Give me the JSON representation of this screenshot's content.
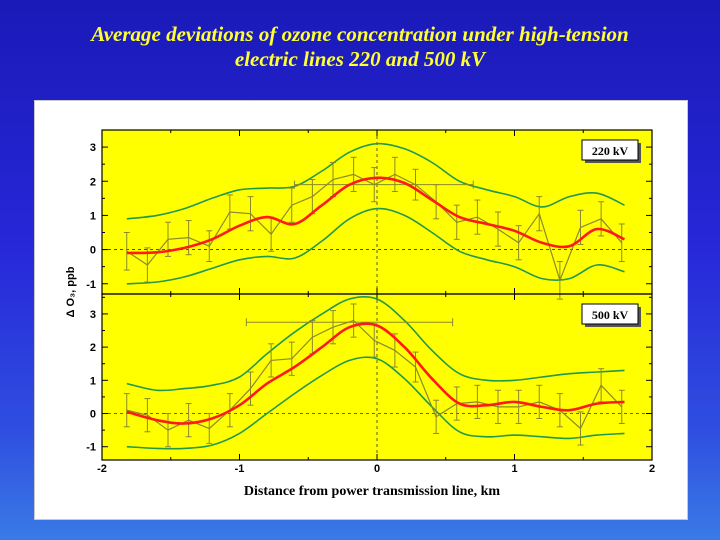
{
  "slide": {
    "title_line1": "Average deviations of ozone concentration under high-tension",
    "title_line2": "electric lines 220 and 500 kV"
  },
  "colors": {
    "background": "#2a2ad0",
    "title": "#ffff33",
    "plot_area": "#ffff00",
    "mean_line": "#ff1a1a",
    "data_line": "#8a8a2a",
    "band_line": "#1f9a4a"
  },
  "chart_data": [
    {
      "type": "line",
      "panel_label": "220 kV",
      "xlabel": "Distance from power transmission line, km",
      "ylabel": "Δ O₃, ppb",
      "xlim": [
        -2,
        2
      ],
      "ylim": [
        -1.3,
        3.5
      ],
      "xticks": [
        "-2",
        "-1",
        "0",
        "1",
        "2"
      ],
      "yticks": [
        "-1",
        "0",
        "1",
        "2",
        "3"
      ],
      "reference_lines": {
        "x": 0,
        "y": 0
      },
      "observed": {
        "x": [
          -1.82,
          -1.67,
          -1.52,
          -1.37,
          -1.22,
          -1.07,
          -0.92,
          -0.77,
          -0.62,
          -0.47,
          -0.32,
          -0.17,
          -0.02,
          0.13,
          0.28,
          0.43,
          0.58,
          0.73,
          0.88,
          1.03,
          1.18,
          1.33,
          1.48,
          1.63,
          1.78
        ],
        "y": [
          -0.05,
          -0.45,
          0.3,
          0.35,
          0.1,
          1.1,
          1.05,
          0.45,
          1.3,
          1.55,
          2.05,
          2.2,
          1.9,
          2.2,
          1.9,
          1.4,
          0.8,
          0.95,
          0.6,
          0.2,
          1.05,
          -0.9,
          0.65,
          0.9,
          0.2
        ],
        "error": [
          0.55,
          0.5,
          0.5,
          0.5,
          0.45,
          0.5,
          0.5,
          0.5,
          0.5,
          0.5,
          0.5,
          0.5,
          0.5,
          0.5,
          0.45,
          0.5,
          0.5,
          0.5,
          0.5,
          0.5,
          0.5,
          0.55,
          0.5,
          0.5,
          0.55
        ]
      },
      "horizontal_error_bar": {
        "center": 0.05,
        "half_width": 0.65,
        "y": 1.9
      },
      "smoothed": {
        "x": [
          -1.82,
          -1.6,
          -1.4,
          -1.2,
          -1.0,
          -0.8,
          -0.6,
          -0.4,
          -0.2,
          0.0,
          0.2,
          0.4,
          0.6,
          0.8,
          1.0,
          1.2,
          1.4,
          1.6,
          1.8
        ],
        "y": [
          -0.1,
          -0.08,
          0.05,
          0.3,
          0.7,
          0.95,
          0.75,
          1.3,
          1.9,
          2.1,
          1.95,
          1.45,
          0.95,
          0.75,
          0.55,
          0.2,
          0.1,
          0.6,
          0.3
        ]
      },
      "upper_band": {
        "x": [
          -1.82,
          -1.6,
          -1.4,
          -1.2,
          -1.0,
          -0.8,
          -0.6,
          -0.4,
          -0.2,
          0.0,
          0.2,
          0.4,
          0.6,
          0.8,
          1.0,
          1.2,
          1.4,
          1.6,
          1.8
        ],
        "y": [
          0.9,
          1.0,
          1.2,
          1.5,
          1.75,
          1.8,
          1.85,
          2.3,
          2.85,
          3.1,
          2.95,
          2.55,
          2.0,
          1.75,
          1.55,
          1.25,
          1.55,
          1.65,
          1.3
        ]
      },
      "lower_band": {
        "x": [
          -1.82,
          -1.6,
          -1.4,
          -1.2,
          -1.0,
          -0.8,
          -0.6,
          -0.4,
          -0.2,
          0.0,
          0.2,
          0.4,
          0.6,
          0.8,
          1.0,
          1.2,
          1.4,
          1.6,
          1.8
        ],
        "y": [
          -1.0,
          -0.95,
          -0.8,
          -0.55,
          -0.3,
          -0.2,
          -0.25,
          0.25,
          0.9,
          1.2,
          1.0,
          0.5,
          -0.05,
          -0.3,
          -0.5,
          -0.85,
          -0.85,
          -0.45,
          -0.65
        ]
      }
    },
    {
      "type": "line",
      "panel_label": "500 kV",
      "xlabel": "Distance from power transmission line, km",
      "ylabel": "Δ O₃, ppb",
      "xlim": [
        -2,
        2
      ],
      "ylim": [
        -1.4,
        3.6
      ],
      "xticks": [
        "-2",
        "-1",
        "0",
        "1",
        "2"
      ],
      "yticks": [
        "-1",
        "0",
        "1",
        "2",
        "3"
      ],
      "reference_lines": {
        "x": 0,
        "y": 0
      },
      "observed": {
        "x": [
          -1.82,
          -1.67,
          -1.52,
          -1.37,
          -1.22,
          -1.07,
          -0.92,
          -0.77,
          -0.62,
          -0.47,
          -0.32,
          -0.17,
          -0.02,
          0.13,
          0.28,
          0.43,
          0.58,
          0.73,
          0.88,
          1.03,
          1.18,
          1.33,
          1.48,
          1.63,
          1.78
        ],
        "y": [
          0.1,
          -0.05,
          -0.5,
          -0.2,
          -0.45,
          0.1,
          0.75,
          1.6,
          1.65,
          2.3,
          2.6,
          2.8,
          2.2,
          1.9,
          1.4,
          -0.1,
          0.3,
          0.35,
          0.2,
          0.2,
          0.35,
          0.1,
          -0.45,
          0.85,
          0.2
        ],
        "error": [
          0.5,
          0.5,
          0.5,
          0.5,
          0.45,
          0.5,
          0.5,
          0.5,
          0.5,
          0.5,
          0.5,
          0.5,
          0.5,
          0.5,
          0.45,
          0.5,
          0.5,
          0.5,
          0.5,
          0.5,
          0.5,
          0.5,
          0.5,
          0.5,
          0.5
        ]
      },
      "horizontal_error_bar": {
        "center": -0.2,
        "half_width": 0.75,
        "y": 2.75
      },
      "smoothed": {
        "x": [
          -1.82,
          -1.6,
          -1.4,
          -1.2,
          -1.0,
          -0.8,
          -0.6,
          -0.4,
          -0.2,
          0.0,
          0.2,
          0.4,
          0.6,
          0.8,
          1.0,
          1.2,
          1.4,
          1.6,
          1.8
        ],
        "y": [
          0.05,
          -0.2,
          -0.3,
          -0.15,
          0.25,
          0.9,
          1.4,
          2.0,
          2.6,
          2.65,
          2.0,
          1.05,
          0.3,
          0.25,
          0.35,
          0.2,
          0.1,
          0.3,
          0.35
        ]
      },
      "upper_band": {
        "x": [
          -1.82,
          -1.6,
          -1.4,
          -1.2,
          -1.0,
          -0.8,
          -0.6,
          -0.4,
          -0.2,
          0.0,
          0.2,
          0.4,
          0.6,
          0.8,
          1.0,
          1.2,
          1.4,
          1.6,
          1.8
        ],
        "y": [
          0.9,
          0.7,
          0.75,
          0.85,
          1.1,
          1.8,
          2.45,
          3.0,
          3.45,
          3.45,
          2.8,
          1.9,
          1.2,
          1.0,
          1.0,
          1.1,
          1.2,
          1.25,
          1.3
        ]
      },
      "lower_band": {
        "x": [
          -1.82,
          -1.6,
          -1.4,
          -1.2,
          -1.0,
          -0.8,
          -0.6,
          -0.4,
          -0.2,
          0.0,
          0.2,
          0.4,
          0.6,
          0.8,
          1.0,
          1.2,
          1.4,
          1.6,
          1.8
        ],
        "y": [
          -1.0,
          -1.05,
          -1.05,
          -0.95,
          -0.6,
          0.0,
          0.6,
          1.15,
          1.6,
          1.65,
          1.05,
          0.2,
          -0.55,
          -0.7,
          -0.65,
          -0.7,
          -0.75,
          -0.65,
          -0.6
        ]
      }
    }
  ]
}
